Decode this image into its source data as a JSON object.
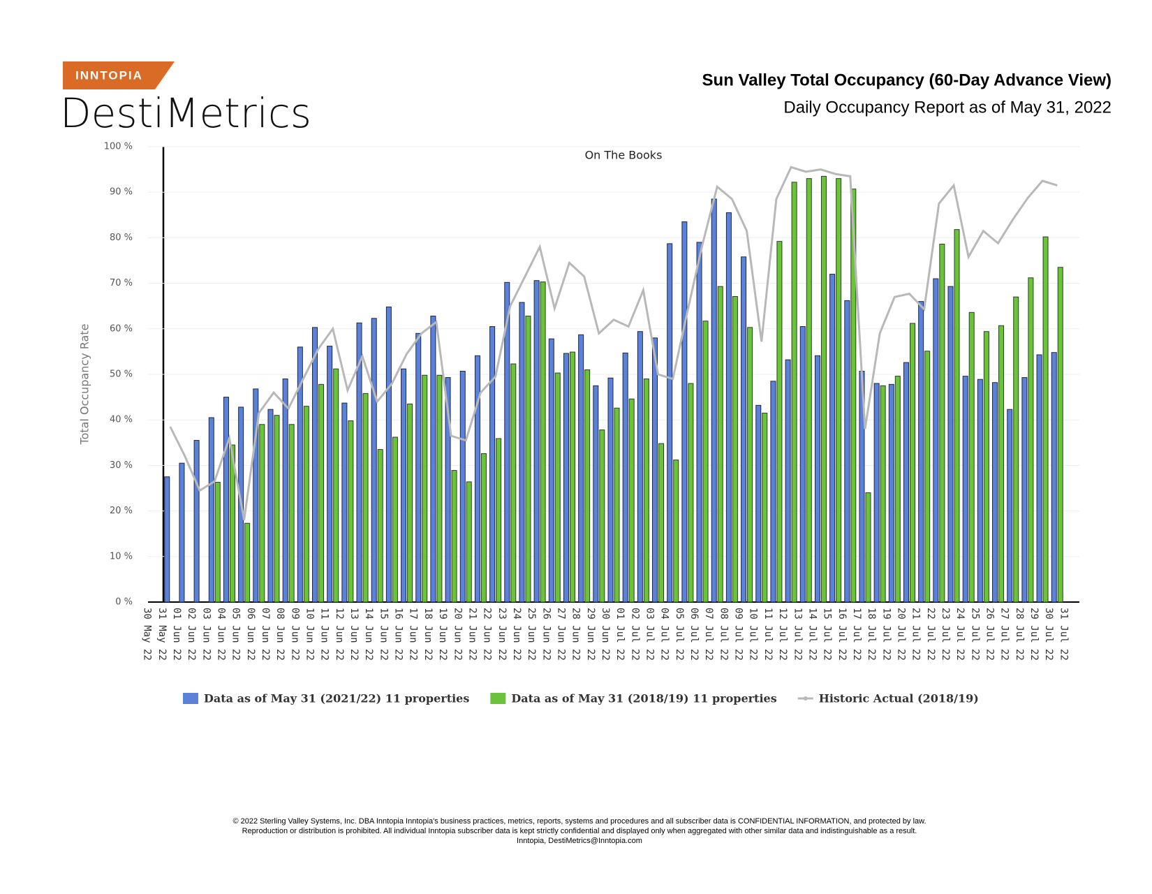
{
  "logo": {
    "badge": "INNTOPIA",
    "name": "DestiMetrics"
  },
  "footer": [
    "© 2022 Sterling Valley Systems, Inc. DBA Inntopia Inntopia's business practices, metrics, reports, systems and procedures and all subscriber data is CONFIDENTIAL INFORMATION, and protected by law.",
    "Reproduction or distribution is prohibited. All individual Inntopia subscriber data is kept strictly confidential and displayed only when aggregated with other similar data and indistinguishable as a result.",
    "Inntopia, DestiMetrics@Inntopia.com"
  ],
  "chart_data": {
    "type": "bar",
    "title": "Sun Valley Total Occupancy (60-Day Advance View)",
    "subtitle": "Daily Occupancy Report as of May 31, 2022",
    "annotation": "On The Books",
    "y_label": "Total Occupancy Rate",
    "categories": [
      "30 May 22",
      "31 May 22",
      "01 Jun 22",
      "02 Jun 22",
      "03 Jun 22",
      "04 Jun 22",
      "05 Jun 22",
      "06 Jun 22",
      "07 Jun 22",
      "08 Jun 22",
      "09 Jun 22",
      "10 Jun 22",
      "11 Jun 22",
      "12 Jun 22",
      "13 Jun 22",
      "14 Jun 22",
      "15 Jun 22",
      "16 Jun 22",
      "17 Jun 22",
      "18 Jun 22",
      "19 Jun 22",
      "20 Jun 22",
      "21 Jun 22",
      "22 Jun 22",
      "23 Jun 22",
      "24 Jun 22",
      "25 Jun 22",
      "26 Jun 22",
      "27 Jun 22",
      "28 Jun 22",
      "29 Jun 22",
      "30 Jun 22",
      "01 Jul 22",
      "02 Jul 22",
      "03 Jul 22",
      "04 Jul 22",
      "05 Jul 22",
      "06 Jul 22",
      "07 Jul 22",
      "08 Jul 22",
      "09 Jul 22",
      "10 Jul 22",
      "11 Jul 22",
      "12 Jul 22",
      "13 Jul 22",
      "14 Jul 22",
      "15 Jul 22",
      "16 Jul 22",
      "17 Jul 22",
      "18 Jul 22",
      "19 Jul 22",
      "20 Jul 22",
      "21 Jul 22",
      "22 Jul 22",
      "23 Jul 22",
      "24 Jul 22",
      "25 Jul 22",
      "26 Jul 22",
      "27 Jul 22",
      "28 Jul 22",
      "29 Jul 22",
      "30 Jul 22",
      "31 Jul 22"
    ],
    "series": [
      {
        "name": "Data as of May 31 (2021/22) 11 properties",
        "color": "#5b82d6",
        "kind": "bar",
        "values": [
          null,
          27.5,
          30.5,
          35.5,
          40.5,
          45,
          42.8,
          46.8,
          42.3,
          49,
          56,
          60.3,
          56.2,
          43.7,
          61.3,
          62.3,
          64.8,
          51.2,
          59,
          62.8,
          49.3,
          50.7,
          54.1,
          60.5,
          70.2,
          65.8,
          70.6,
          57.8,
          54.6,
          58.7,
          47.5,
          49.2,
          54.7,
          59.4,
          58,
          78.7,
          83.5,
          79,
          88.5,
          85.5,
          75.8,
          43.2,
          48.5,
          53.2,
          60.5,
          54.1,
          72,
          66.2,
          50.7,
          48,
          47.8,
          52.6,
          66,
          71,
          69.3,
          49.6,
          48.9,
          48.2,
          42.3,
          49.3,
          54.3,
          54.8,
          null
        ]
      },
      {
        "name": "Data as of May 31 (2018/19) 11 properties",
        "color": "#6cc23a",
        "kind": "bar",
        "values": [
          null,
          null,
          null,
          null,
          26.3,
          34.5,
          17.3,
          39,
          41,
          39,
          43,
          47.8,
          51.2,
          39.8,
          45.8,
          33.5,
          36.2,
          43.5,
          49.8,
          49.8,
          28.9,
          26.4,
          32.6,
          35.9,
          52.3,
          62.8,
          70.3,
          50.3,
          54.9,
          51,
          37.8,
          42.6,
          44.6,
          49,
          34.8,
          31.2,
          48,
          61.7,
          69.3,
          67.1,
          60.3,
          41.5,
          79.2,
          92.2,
          93,
          93.5,
          93,
          90.7,
          24,
          47.5,
          49.6,
          61.2,
          55.1,
          78.6,
          81.8,
          63.6,
          59.4,
          60.7,
          67,
          71.2,
          80.2,
          73.5,
          null
        ]
      },
      {
        "name": "Historic Actual (2018/19)",
        "color": "#b8b8b8",
        "kind": "line",
        "values": [
          null,
          38.5,
          32,
          24.5,
          26.5,
          36,
          18,
          41.5,
          46,
          42.5,
          49,
          55.5,
          60,
          46.5,
          54,
          44,
          48,
          54.5,
          59,
          61.5,
          36.5,
          35.5,
          46,
          49.5,
          65,
          71.5,
          78,
          64.5,
          74.5,
          71.5,
          59,
          62,
          60.5,
          68.5,
          50,
          49,
          64,
          78.5,
          91.2,
          88.5,
          81.5,
          57.2,
          88.5,
          95.5,
          94.5,
          95,
          94,
          93.5,
          38,
          59,
          67,
          67.7,
          64.3,
          87.5,
          91.5,
          75.8,
          81.5,
          78.8,
          84,
          88.7,
          92.5,
          91.5,
          null
        ]
      }
    ],
    "ylim": [
      0,
      100
    ],
    "yticks": [
      {
        "value": 0,
        "label": "0 %"
      },
      {
        "value": 10,
        "label": "10 %"
      },
      {
        "value": 20,
        "label": "20 %"
      },
      {
        "value": 30,
        "label": "30 %"
      },
      {
        "value": 40,
        "label": "40 %"
      },
      {
        "value": 50,
        "label": "50 %"
      },
      {
        "value": 60,
        "label": "60 %"
      },
      {
        "value": 70,
        "label": "70 %"
      },
      {
        "value": 80,
        "label": "80 %"
      },
      {
        "value": 90,
        "label": "90 %"
      },
      {
        "value": 100,
        "label": "100 %"
      }
    ],
    "grid": true
  }
}
